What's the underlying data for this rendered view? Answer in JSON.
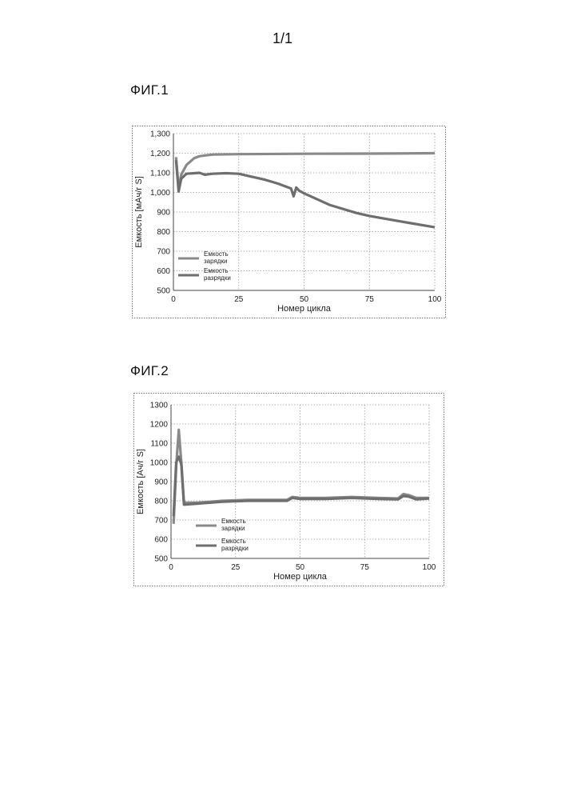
{
  "page_number": "1/1",
  "figures": [
    {
      "label": "ФИГ.1"
    },
    {
      "label": "ФИГ.2"
    }
  ],
  "chart_data": [
    {
      "type": "line",
      "title": "",
      "xlabel": "Номер цикла",
      "ylabel": "Емкость [мАч/г S]",
      "xlim": [
        0,
        100
      ],
      "ylim": [
        500,
        1300
      ],
      "xticks": [
        "0",
        "25",
        "50",
        "75",
        "100"
      ],
      "yticks": [
        "500",
        "600",
        "700",
        "800",
        "900",
        "1,000",
        "1,100",
        "1,200",
        "1,300"
      ],
      "grid": true,
      "legend_position": "lower-left",
      "series": [
        {
          "name": "Емкость зарядки",
          "color": "#8a8a8a",
          "x": [
            1,
            2,
            3,
            5,
            8,
            10,
            15,
            25,
            50,
            75,
            100
          ],
          "y": [
            1180,
            1020,
            1090,
            1140,
            1175,
            1185,
            1193,
            1195,
            1197,
            1198,
            1200
          ]
        },
        {
          "name": "Емкость разрядки",
          "color": "#6e6e6e",
          "x": [
            1,
            2,
            3,
            5,
            8,
            10,
            12,
            15,
            20,
            25,
            30,
            35,
            40,
            45,
            46,
            47,
            48,
            50,
            55,
            60,
            70,
            75,
            80,
            90,
            100
          ],
          "y": [
            1165,
            1005,
            1070,
            1095,
            1098,
            1100,
            1090,
            1095,
            1098,
            1095,
            1080,
            1065,
            1045,
            1020,
            980,
            1025,
            1010,
            995,
            965,
            935,
            895,
            880,
            868,
            845,
            822
          ]
        }
      ]
    },
    {
      "type": "line",
      "title": "",
      "xlabel": "Номер цикла",
      "ylabel": "Емкость [Ач/г S]",
      "xlim": [
        0,
        100
      ],
      "ylim": [
        500,
        1300
      ],
      "xticks": [
        "0",
        "25",
        "50",
        "75",
        "100"
      ],
      "yticks": [
        "500",
        "600",
        "700",
        "800",
        "900",
        "1000",
        "1100",
        "1200",
        "1300"
      ],
      "grid": true,
      "legend_position": "lower-left",
      "series": [
        {
          "name": "Емкость зарядки",
          "color": "#8a8a8a",
          "x": [
            1,
            2,
            3,
            4,
            5,
            10,
            20,
            30,
            40,
            45,
            47,
            50,
            60,
            70,
            80,
            88,
            90,
            92,
            95,
            100
          ],
          "y": [
            680,
            980,
            1170,
            1000,
            790,
            790,
            800,
            805,
            805,
            805,
            820,
            815,
            815,
            820,
            815,
            812,
            835,
            830,
            815,
            815
          ]
        },
        {
          "name": "Емкость разрядки",
          "color": "#6e6e6e",
          "x": [
            1,
            2,
            3,
            4,
            5,
            10,
            20,
            30,
            40,
            45,
            47,
            50,
            60,
            70,
            80,
            88,
            90,
            92,
            95,
            100
          ],
          "y": [
            720,
            1000,
            1030,
            990,
            780,
            785,
            795,
            800,
            800,
            800,
            815,
            810,
            810,
            815,
            810,
            808,
            825,
            822,
            808,
            812
          ]
        }
      ]
    }
  ]
}
